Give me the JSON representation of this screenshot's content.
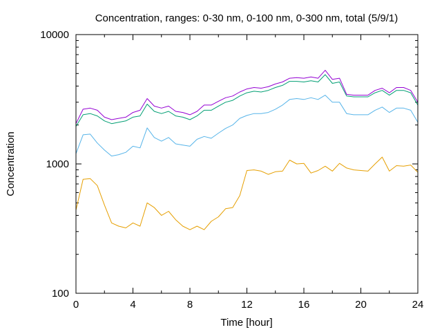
{
  "chart_data": {
    "type": "line",
    "title": "Concentration, ranges: 0-30 nm, 0-100 nm, 0-300 nm, total (5/9/1)",
    "xlabel": "Time [hour]",
    "ylabel": "Concentration",
    "xlim": [
      0,
      24
    ],
    "ylim": [
      100,
      10000
    ],
    "yscale": "log",
    "grid": false,
    "legend": "none",
    "x_ticks": [
      "0",
      "4",
      "8",
      "12",
      "16",
      "20",
      "24"
    ],
    "y_ticks": [
      "100",
      "1000",
      "10000"
    ],
    "x": [
      0,
      0.5,
      1,
      1.5,
      2,
      2.5,
      3,
      3.5,
      4,
      4.5,
      5,
      5.5,
      6,
      6.5,
      7,
      7.5,
      8,
      8.5,
      9,
      9.5,
      10,
      10.5,
      11,
      11.5,
      12,
      12.5,
      13,
      13.5,
      14,
      14.5,
      15,
      15.5,
      16,
      16.5,
      17,
      17.5,
      18,
      18.5,
      19,
      19.5,
      20,
      20.5,
      21,
      21.5,
      22,
      22.5,
      23,
      23.5,
      24
    ],
    "series": [
      {
        "color": "#e69f00",
        "values": [
          440,
          760,
          770,
          680,
          480,
          350,
          330,
          320,
          350,
          330,
          500,
          460,
          400,
          430,
          370,
          330,
          310,
          330,
          310,
          360,
          390,
          450,
          460,
          570,
          890,
          900,
          880,
          830,
          870,
          880,
          1070,
          1000,
          1010,
          850,
          890,
          960,
          880,
          1010,
          930,
          900,
          890,
          880,
          1000,
          1130,
          880,
          970,
          960,
          980,
          860
        ]
      },
      {
        "color": "#56b4e9",
        "values": [
          1200,
          1680,
          1700,
          1450,
          1280,
          1150,
          1180,
          1230,
          1370,
          1330,
          1900,
          1600,
          1500,
          1600,
          1430,
          1400,
          1370,
          1550,
          1630,
          1580,
          1730,
          1880,
          2000,
          2250,
          2370,
          2450,
          2450,
          2500,
          2650,
          2850,
          3150,
          3200,
          3150,
          3250,
          3150,
          3400,
          3000,
          3000,
          2450,
          2400,
          2400,
          2400,
          2600,
          2750,
          2500,
          2700,
          2700,
          2600,
          2100
        ]
      },
      {
        "color": "#009e73",
        "values": [
          1950,
          2400,
          2450,
          2350,
          2150,
          2050,
          2100,
          2150,
          2300,
          2350,
          2900,
          2550,
          2450,
          2550,
          2350,
          2300,
          2200,
          2350,
          2600,
          2600,
          2800,
          3000,
          3100,
          3350,
          3550,
          3650,
          3600,
          3700,
          3900,
          4050,
          4350,
          4350,
          4300,
          4400,
          4300,
          4900,
          4200,
          4300,
          3350,
          3300,
          3300,
          3300,
          3550,
          3700,
          3400,
          3700,
          3700,
          3550,
          2850
        ]
      },
      {
        "color": "#9400d3",
        "values": [
          2050,
          2650,
          2700,
          2600,
          2300,
          2200,
          2250,
          2300,
          2500,
          2600,
          3200,
          2800,
          2700,
          2800,
          2550,
          2500,
          2400,
          2550,
          2850,
          2850,
          3050,
          3250,
          3350,
          3600,
          3800,
          3900,
          3850,
          3950,
          4150,
          4300,
          4600,
          4650,
          4600,
          4700,
          4600,
          5300,
          4500,
          4600,
          3450,
          3400,
          3400,
          3400,
          3700,
          3850,
          3550,
          3900,
          3900,
          3700,
          3000
        ]
      }
    ]
  }
}
